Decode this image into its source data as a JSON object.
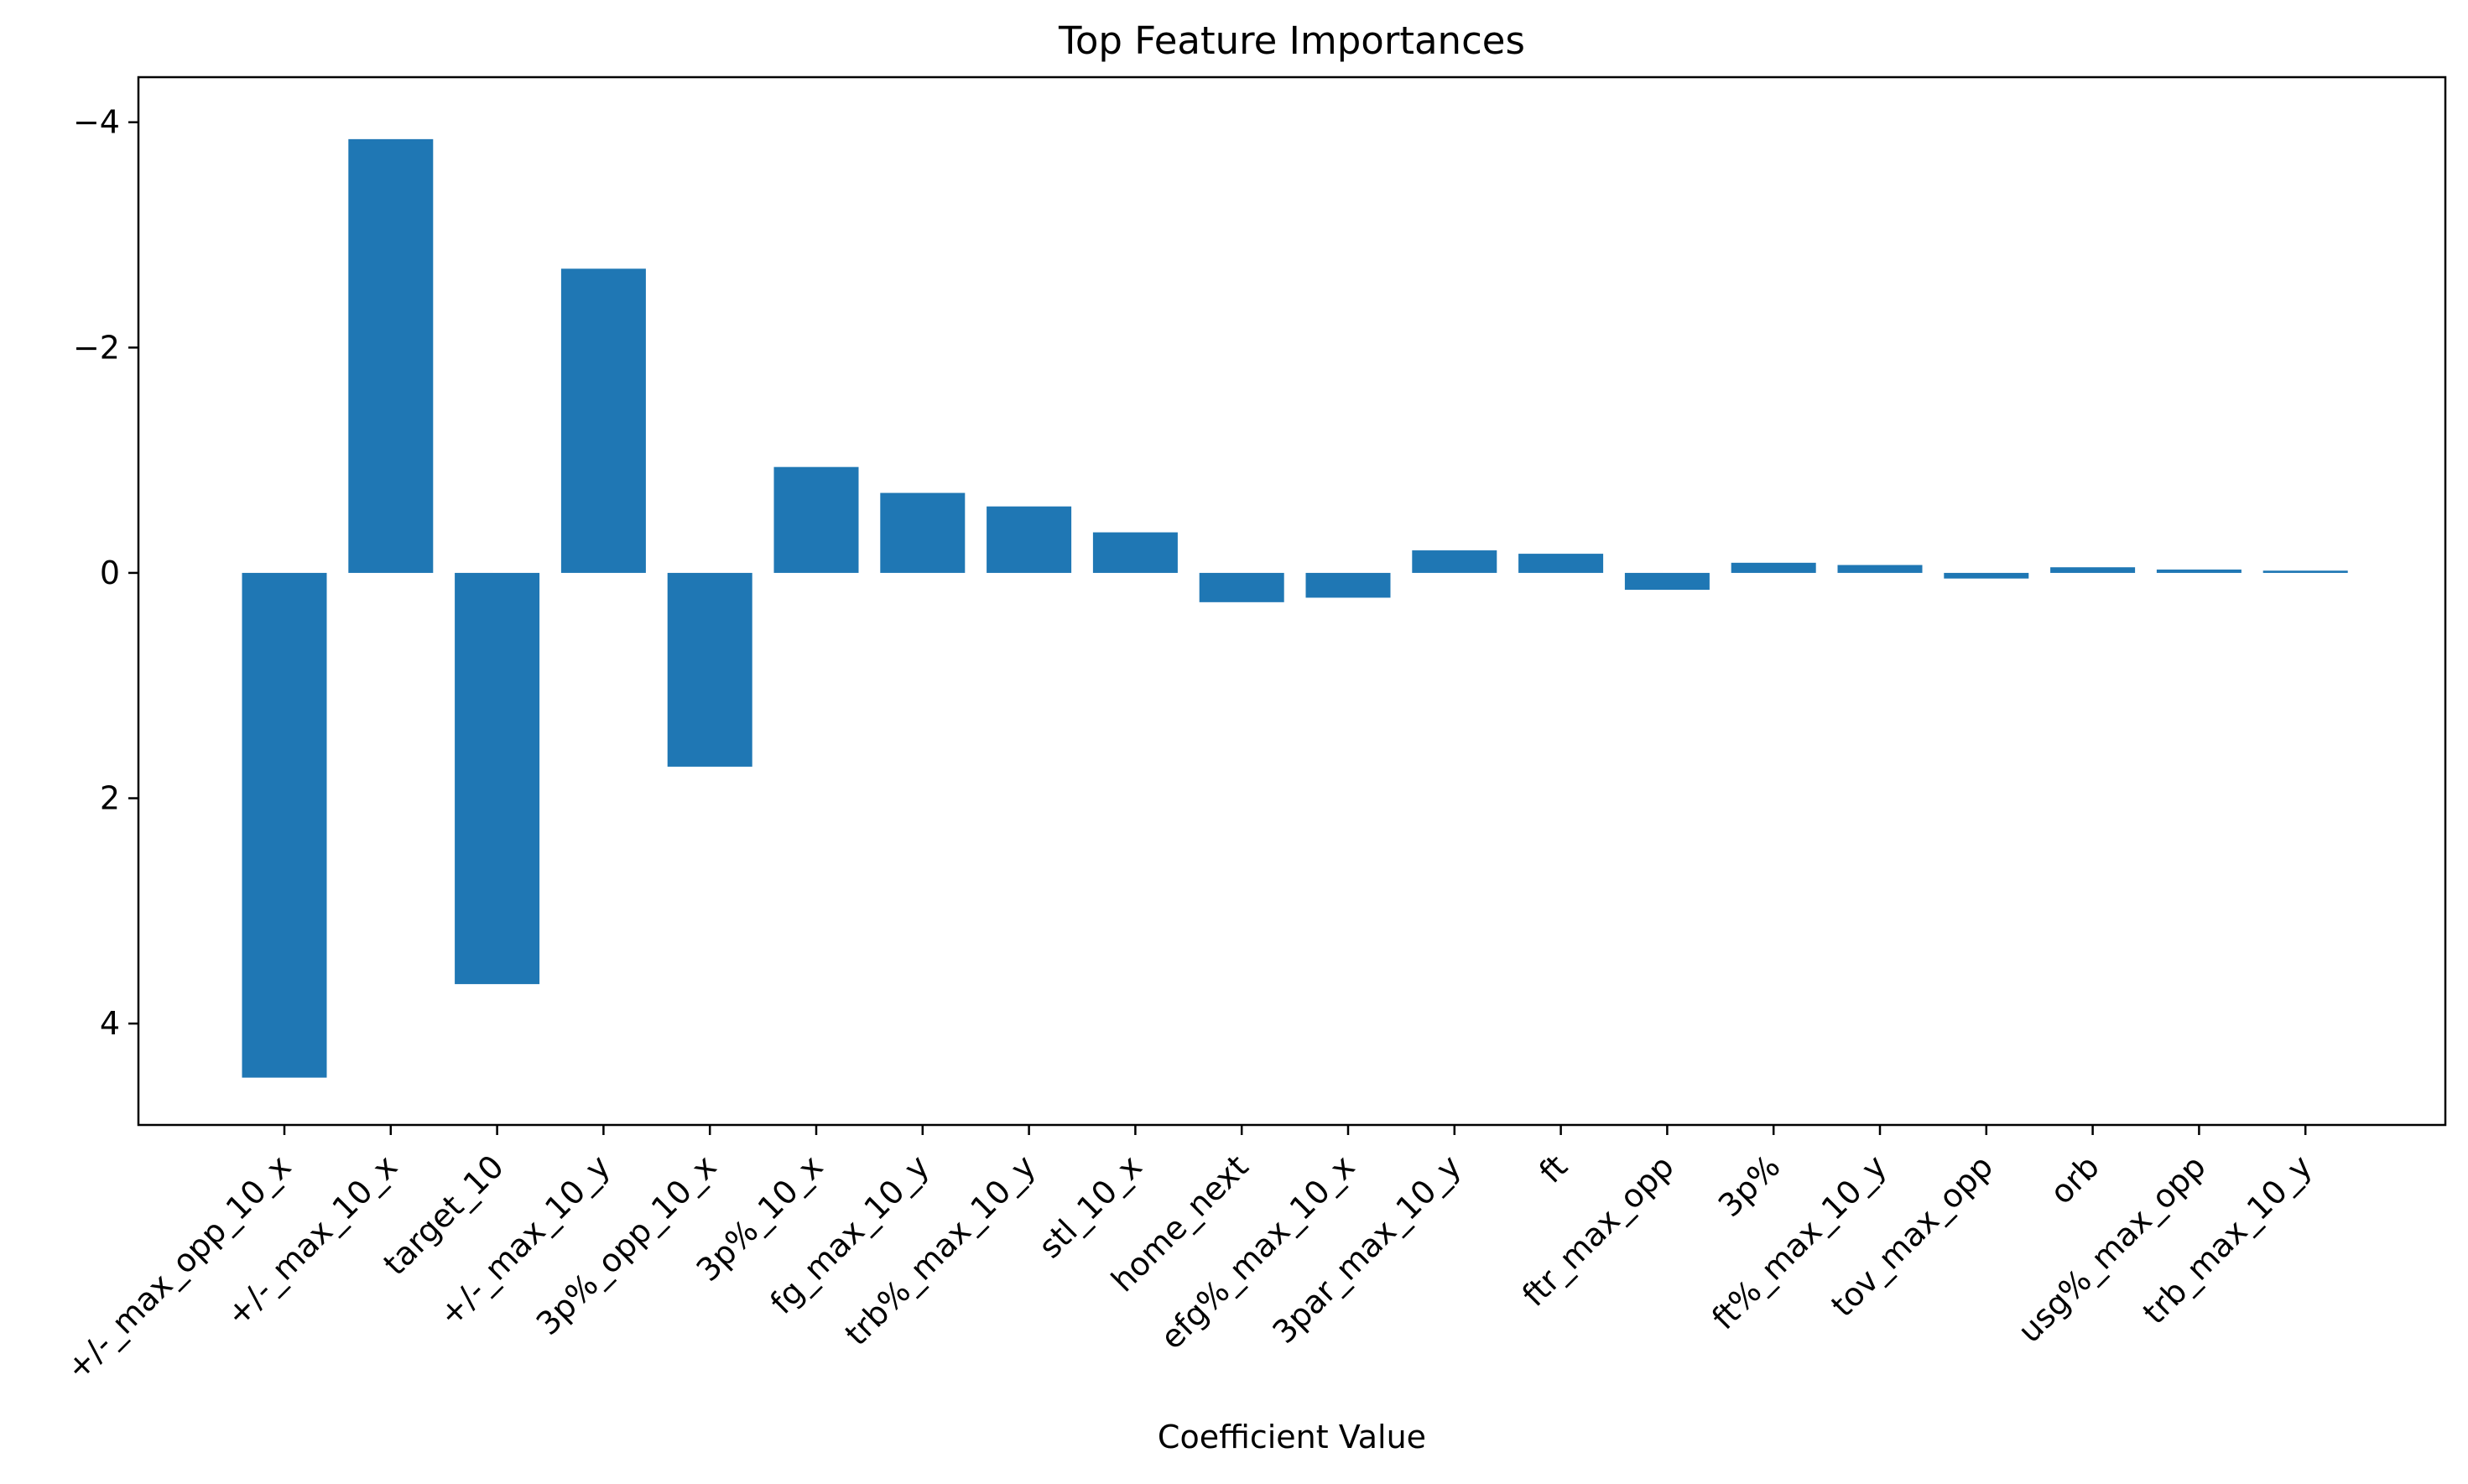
{
  "chart_data": {
    "type": "bar",
    "title": "Top Feature Importances",
    "xlabel": "Coefficient Value",
    "ylabel": "",
    "ylim": [
      4.9,
      -4.4
    ],
    "y_axis_inverted": true,
    "yticks": [
      -4,
      -2,
      0,
      2,
      4
    ],
    "ytick_labels": [
      "−4",
      "−2",
      "0",
      "2",
      "4"
    ],
    "grid": false,
    "legend": "none",
    "bar_color": "#1f77b4",
    "categories": [
      "+/-_max_opp_10_x",
      "+/-_max_10_x",
      "target_10",
      "+/-_max_10_y",
      "3p%_opp_10_x",
      "3p%_10_x",
      "fg_max_10_y",
      "trb%_max_10_y",
      "stl_10_x",
      "home_next",
      "efg%_max_10_x",
      "3par_max_10_y",
      "ft",
      "ftr_max_opp",
      "3p%",
      "ft%_max_10_y",
      "tov_max_opp",
      "orb",
      "usg%_max_opp",
      "trb_max_10_y"
    ],
    "values": [
      4.48,
      -3.85,
      3.65,
      -2.7,
      1.72,
      -0.94,
      -0.71,
      -0.59,
      -0.36,
      0.26,
      0.22,
      -0.2,
      -0.17,
      0.15,
      -0.09,
      -0.07,
      0.05,
      -0.05,
      -0.03,
      -0.02
    ]
  }
}
